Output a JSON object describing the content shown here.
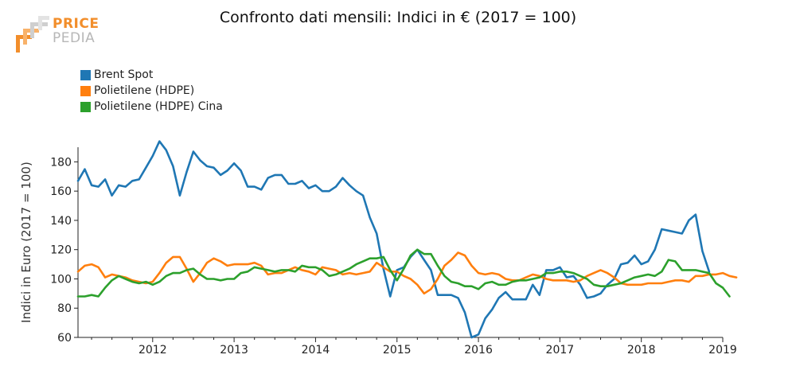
{
  "brand": {
    "line1": "PRICE",
    "line2": "PEDIA"
  },
  "chart_data": {
    "type": "line",
    "title": "Confronto dati mensili: Indici in € (2017 = 100)",
    "ylabel": "Indici in Euro (2017 = 100)",
    "xlabel": "",
    "ylim": [
      60,
      190
    ],
    "xlim": [
      "2011-02",
      "2019-01"
    ],
    "yticks": [
      60,
      80,
      100,
      120,
      140,
      160,
      180
    ],
    "xticks": [
      "2012",
      "2013",
      "2014",
      "2015",
      "2016",
      "2017",
      "2018",
      "2019"
    ],
    "grid": false,
    "legend_position": "top-left",
    "x_start": "2011-02",
    "series": [
      {
        "name": "Brent Spot",
        "color": "#1f77b4",
        "values": [
          167,
          175,
          164,
          163,
          168,
          157,
          164,
          163,
          167,
          168,
          176,
          184,
          194,
          188,
          177,
          157,
          173,
          187,
          181,
          177,
          176,
          171,
          174,
          179,
          174,
          163,
          163,
          161,
          169,
          171,
          171,
          165,
          165,
          167,
          162,
          164,
          160,
          160,
          163,
          169,
          164,
          160,
          157,
          142,
          131,
          107,
          88,
          106,
          108,
          115,
          120,
          113,
          106,
          89,
          89,
          89,
          87,
          77,
          60,
          62,
          73,
          79,
          87,
          91,
          86,
          86,
          86,
          96,
          89,
          106,
          106,
          108,
          101,
          102,
          96,
          87,
          88,
          90,
          96,
          100,
          110,
          111,
          116,
          110,
          112,
          120,
          134,
          133,
          132,
          131,
          140,
          144,
          119,
          105
        ]
      },
      {
        "name": "Polietilene (HDPE)",
        "color": "#ff7f0e",
        "values": [
          105,
          109,
          110,
          108,
          101,
          103,
          102,
          101,
          99,
          98,
          97,
          98,
          104,
          111,
          115,
          115,
          107,
          98,
          104,
          111,
          114,
          112,
          109,
          110,
          110,
          110,
          111,
          109,
          103,
          104,
          104,
          106,
          108,
          106,
          105,
          103,
          108,
          107,
          106,
          103,
          104,
          103,
          104,
          105,
          111,
          108,
          105,
          105,
          102,
          100,
          96,
          90,
          93,
          100,
          109,
          113,
          118,
          116,
          109,
          104,
          103,
          104,
          103,
          100,
          99,
          99,
          101,
          103,
          102,
          100,
          99,
          99,
          99,
          98,
          99,
          102,
          104,
          106,
          104,
          101,
          97,
          96,
          96,
          96,
          97,
          97,
          97,
          98,
          99,
          99,
          98,
          102,
          102,
          103,
          103,
          104,
          102,
          101
        ]
      },
      {
        "name": "Polietilene (HDPE) Cina",
        "color": "#2ca02c",
        "values": [
          88,
          88,
          89,
          88,
          94,
          99,
          102,
          100,
          98,
          97,
          98,
          96,
          98,
          102,
          104,
          104,
          106,
          107,
          103,
          100,
          100,
          99,
          100,
          100,
          104,
          105,
          108,
          107,
          106,
          105,
          106,
          106,
          105,
          109,
          108,
          108,
          106,
          102,
          103,
          105,
          107,
          110,
          112,
          114,
          114,
          115,
          106,
          99,
          107,
          116,
          120,
          117,
          117,
          109,
          102,
          98,
          97,
          95,
          95,
          93,
          97,
          98,
          96,
          96,
          98,
          99,
          99,
          100,
          101,
          104,
          104,
          105,
          105,
          104,
          102,
          100,
          96,
          95,
          95,
          96,
          97,
          99,
          101,
          102,
          103,
          102,
          105,
          113,
          112,
          106,
          106,
          106,
          105,
          104,
          97,
          94,
          88
        ]
      }
    ]
  }
}
